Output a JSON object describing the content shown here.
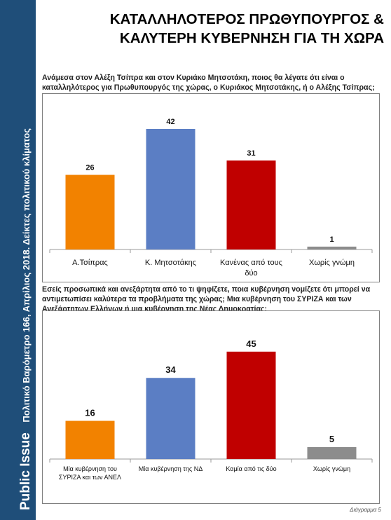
{
  "sidebar": {
    "brand": "Public Issue",
    "subtitle": "Πολιτικό Βαρόμετρο 166, Απρίλιος 2018. Δείκτες πολιτικού κλίματος"
  },
  "title": {
    "line1": "ΚΑΤΑΛΛΗΛΟΤΕΡΟΣ ΠΡΩΘΥΠΟΥΡΓΟΣ &",
    "line2": "ΚΑΛΥΤΕΡΗ ΚΥΒΕΡΝΗΣΗ ΓΙΑ ΤΗ ΧΩΡΑ"
  },
  "questions": {
    "q1": [
      "Ανάμεσα στον Αλέξη Τσίπρα και στον Κυριάκο Μητσοτάκη, ποιος θα λέγατε ότι είναι ο",
      "καταλληλότερος για Πρωθυπουργός της χώρας, ο Κυριάκος Μητσοτάκης, ή ο Αλέξης Τσίπρας;"
    ],
    "q2": [
      "Εσείς προσωπικά και ανεξάρτητα από το τι ψηφίζετε, ποια κυβέρνηση νομίζετε ότι μπορεί να",
      "αντιμετωπίσει καλύτερα τα προβλήματα της χώρας; Μια κυβέρνηση του ΣΥΡΙΖΑ και των",
      "Ανεξάρτητων Ελλήνων ή μια κυβέρνηση της Νέας Δημοκρατίας;"
    ]
  },
  "colors": {
    "orange": "#f28200",
    "blue": "#5b7ec4",
    "red": "#c00000",
    "gray": "#8c8c8c"
  },
  "chart_data": [
    {
      "type": "bar",
      "categories": [
        [
          "Α.Τσίπρας"
        ],
        [
          "Κ. Μητσοτάκης"
        ],
        [
          "Κανένας από τους",
          "δύο"
        ],
        [
          "Χωρίς γνώμη"
        ]
      ],
      "values": [
        26,
        42,
        31,
        1
      ],
      "colors": [
        "#f28200",
        "#5b7ec4",
        "#c00000",
        "#8c8c8c"
      ],
      "title": "",
      "xlabel": "",
      "ylabel": "",
      "ylim": [
        0,
        50
      ]
    },
    {
      "type": "bar",
      "categories": [
        [
          "Μία κυβέρνηση του",
          "ΣΥΡΙΖΑ και των ΑΝΕΛ"
        ],
        [
          "Μία κυβέρνηση της ΝΔ"
        ],
        [
          "Καμία από τις δύο"
        ],
        [
          "Χωρίς γνώμη"
        ]
      ],
      "values": [
        16,
        34,
        45,
        5
      ],
      "colors": [
        "#f28200",
        "#5b7ec4",
        "#c00000",
        "#8c8c8c"
      ],
      "title": "",
      "xlabel": "",
      "ylabel": "",
      "ylim": [
        0,
        50
      ]
    }
  ],
  "footer": "Διάγραμμα 5"
}
